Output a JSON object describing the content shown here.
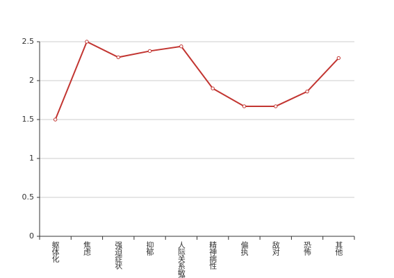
{
  "chart_data": {
    "type": "line",
    "categories": [
      "躯体化",
      "焦虑",
      "强迫症状",
      "抑郁",
      "人际关系敏感",
      "精神病性",
      "偏执",
      "敌对",
      "恐怖",
      "其他"
    ],
    "values": [
      1.5,
      2.5,
      2.3,
      2.38,
      2.44,
      1.9,
      1.67,
      1.67,
      1.86,
      2.29
    ],
    "color": "#c23531",
    "ylim": [
      0,
      2.5
    ],
    "yticks": [
      0,
      0.5,
      1,
      1.5,
      2,
      2.5
    ],
    "grid": true
  }
}
